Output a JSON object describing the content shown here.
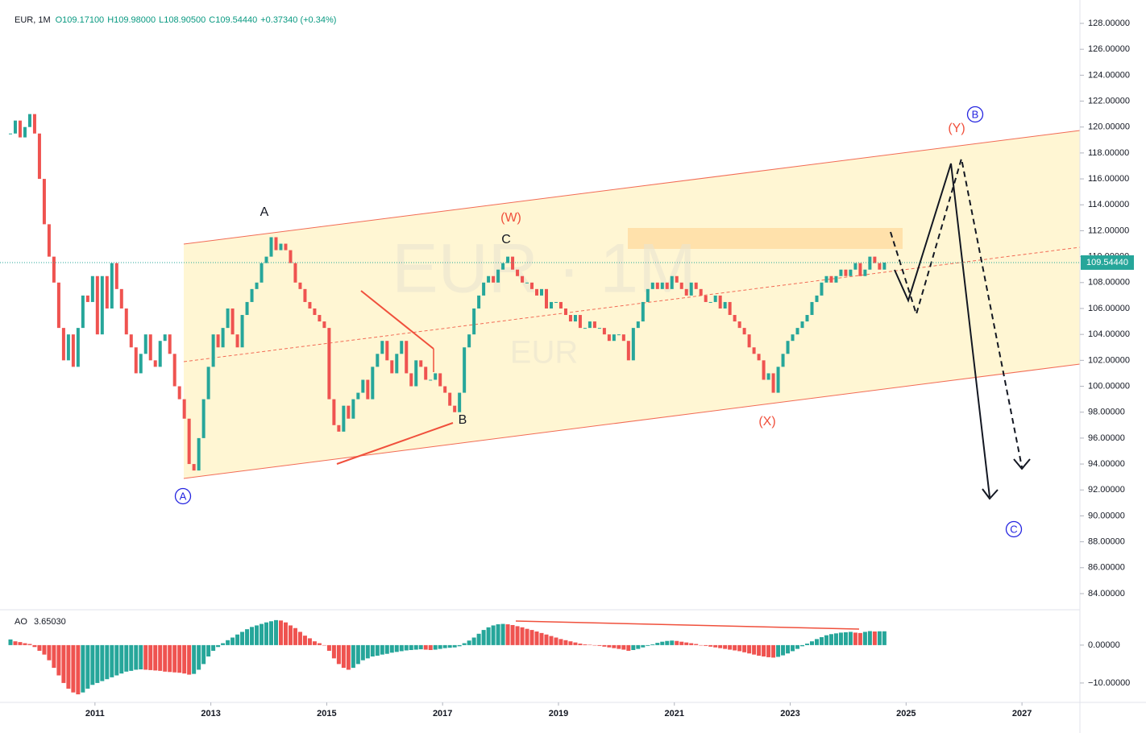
{
  "header": {
    "symbol": "EUR, 1M",
    "open": "O109.17100",
    "high": "H109.98000",
    "low": "L108.90500",
    "close": "C109.54440",
    "change": "+0.37340 (+0.34%)"
  },
  "last_price_label": "109.54440",
  "watermark": [
    "EUR · 1M",
    "EUR"
  ],
  "annotations": {
    "a": "A",
    "b": "B",
    "c": "C",
    "w": "(W)",
    "x": "(X)",
    "y": "(Y)",
    "circ_a": "A",
    "circ_b": "B",
    "circ_c": "C"
  },
  "chart_data": [
    {
      "type": "candlestick",
      "up_color": "#26a69a",
      "down_color": "#ef5350",
      "closes": [
        119.5,
        120.5,
        119.2,
        120,
        121,
        119.5,
        116,
        112.5,
        110,
        108,
        104.5,
        102,
        104,
        101.5,
        104.5,
        107,
        106.5,
        108.5,
        104,
        108.5,
        106,
        109.5,
        107.5,
        106,
        104,
        103,
        101,
        102.5,
        104,
        102,
        101.5,
        103.5,
        104,
        102.5,
        100,
        99,
        97.5,
        94,
        93.5,
        96,
        99,
        101.5,
        104,
        103,
        104.5,
        106,
        104,
        103,
        105.5,
        106.5,
        107.5,
        108,
        109.5,
        110,
        111.5,
        110.5,
        111,
        110.5,
        109.5,
        108,
        107.5,
        106.5,
        106,
        105.5,
        105,
        104.5,
        99,
        97,
        96.5,
        98.5,
        97.5,
        99,
        99.5,
        100.5,
        99,
        101.5,
        102.5,
        103.5,
        102,
        101,
        102.5,
        103.5,
        101,
        100,
        102,
        101.5,
        100.5,
        100.5,
        101,
        100,
        99.5,
        98.5,
        98,
        99.5,
        103,
        104,
        106,
        107,
        108,
        108.5,
        108,
        109,
        109.5,
        110,
        109,
        108.5,
        108,
        108,
        107.5,
        107,
        107.5,
        106,
        106.5,
        106.5,
        106,
        105.5,
        105,
        105.5,
        104.5,
        104.5,
        105,
        104.5,
        104.5,
        104,
        103.5,
        104,
        104,
        103.5,
        102,
        104.5,
        105,
        106.5,
        107.5,
        108,
        107.5,
        108,
        107.5,
        108.5,
        108,
        107.5,
        107,
        108,
        107.5,
        107,
        106.5,
        106.5,
        107,
        106,
        106.5,
        105.5,
        105,
        104.5,
        104,
        103,
        102.5,
        102,
        100.5,
        101,
        99.5,
        101.5,
        102.5,
        103.5,
        104,
        104.5,
        105,
        105.5,
        106.5,
        107,
        108,
        108.5,
        108,
        108.5,
        109,
        108.5,
        109,
        109.5,
        108.5,
        109,
        110,
        109.5,
        109,
        109.5444
      ],
      "xlim": [
        2009.5,
        2028
      ],
      "xticks": [
        2011,
        2013,
        2015,
        2017,
        2019,
        2021,
        2023,
        2025,
        2027
      ],
      "ylim": [
        82.88,
        129.18
      ],
      "yticks": [
        {
          "value": 84,
          "label": "84.00000"
        },
        {
          "value": 86,
          "label": "86.00000"
        },
        {
          "value": 88,
          "label": "88.00000"
        },
        {
          "value": 90,
          "label": "90.00000"
        },
        {
          "value": 92,
          "label": "92.00000"
        },
        {
          "value": 94,
          "label": "94.00000"
        },
        {
          "value": 96,
          "label": "96.00000"
        },
        {
          "value": 98,
          "label": "98.00000"
        },
        {
          "value": 100,
          "label": "100.00000"
        },
        {
          "value": 102,
          "label": "102.00000"
        },
        {
          "value": 104,
          "label": "104.00000"
        },
        {
          "value": 106,
          "label": "106.00000"
        },
        {
          "value": 108,
          "label": "108.00000"
        },
        {
          "value": 110,
          "label": "110.00000"
        },
        {
          "value": 112,
          "label": "112.00000"
        },
        {
          "value": 114,
          "label": "114.00000"
        },
        {
          "value": 116,
          "label": "116.00000"
        },
        {
          "value": 118,
          "label": "118.00000"
        },
        {
          "value": 120,
          "label": "120.00000"
        },
        {
          "value": 122,
          "label": "122.00000"
        },
        {
          "value": 124,
          "label": "124.00000"
        },
        {
          "value": 126,
          "label": "126.00000"
        },
        {
          "value": 128,
          "label": "128.00000"
        }
      ]
    },
    {
      "type": "bar",
      "name": "AO",
      "value_label": "3.65030",
      "up_color": "#26a69a",
      "down_color": "#ef5350",
      "values": [
        1.5,
        1,
        0.8,
        0.5,
        0.3,
        -0.5,
        -1.5,
        -2.5,
        -4,
        -6,
        -8,
        -10,
        -11.5,
        -12.5,
        -13,
        -12.5,
        -11.5,
        -10.5,
        -10,
        -9.5,
        -9,
        -8.5,
        -8,
        -7.5,
        -7,
        -6.8,
        -6.5,
        -6.4,
        -6.5,
        -6.6,
        -6.7,
        -6.8,
        -7,
        -7.1,
        -7.2,
        -7.3,
        -7.5,
        -7.8,
        -7.6,
        -6.5,
        -5,
        -3,
        -1.5,
        -0.5,
        0.5,
        1.3,
        2,
        2.8,
        3.5,
        4.2,
        4.8,
        5.2,
        5.6,
        6,
        6.3,
        6.6,
        6.5,
        6,
        5.2,
        4.5,
        3.5,
        2.5,
        1.8,
        1,
        0.5,
        0,
        -1.5,
        -3.5,
        -5,
        -6,
        -6.5,
        -6,
        -5,
        -4,
        -3.5,
        -3,
        -2.8,
        -2.5,
        -2.3,
        -2,
        -1.8,
        -1.6,
        -1.4,
        -1.3,
        -1.2,
        -1.1,
        -1.2,
        -1.3,
        -1.2,
        -1,
        -0.8,
        -0.7,
        -0.6,
        -0.3,
        0.5,
        1.2,
        2,
        3,
        4,
        4.7,
        5.2,
        5.5,
        5.6,
        5.5,
        5.3,
        5,
        4.7,
        4.3,
        4,
        3.6,
        3.2,
        2.8,
        2.4,
        2,
        1.6,
        1.3,
        1,
        0.7,
        0.4,
        0.2,
        0.1,
        0,
        -0.2,
        -0.4,
        -0.6,
        -0.8,
        -1,
        -1.2,
        -1.5,
        -1.3,
        -1,
        -0.6,
        -0.2,
        0.2,
        0.6,
        0.9,
        1.1,
        1.2,
        1.1,
        0.9,
        0.7,
        0.5,
        0.3,
        0,
        -0.2,
        -0.4,
        -0.6,
        -0.8,
        -1,
        -1.2,
        -1.4,
        -1.6,
        -1.9,
        -2.2,
        -2.5,
        -2.8,
        -3,
        -3.2,
        -3.3,
        -3.1,
        -2.7,
        -2.2,
        -1.6,
        -1,
        -0.3,
        0.4,
        1,
        1.6,
        2.1,
        2.6,
        2.9,
        3.1,
        3.3,
        3.4,
        3.5,
        3.3,
        3.2,
        3.5,
        3.7,
        3.6,
        3.65,
        3.6503
      ],
      "ylim": [
        -14.7,
        8.7
      ],
      "yticks": [
        {
          "value": 0,
          "label": "0.00000"
        },
        {
          "value": -10,
          "label": "−10.00000"
        }
      ]
    }
  ]
}
